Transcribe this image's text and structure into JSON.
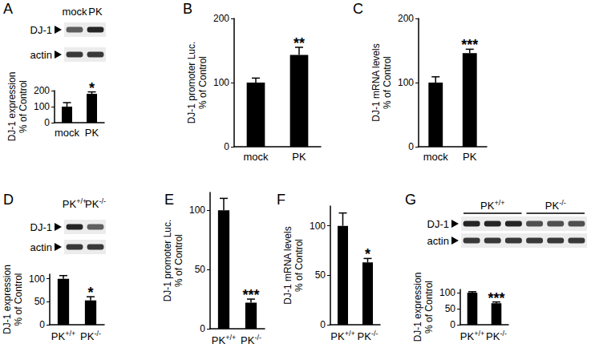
{
  "chart_data": [
    {
      "panel": "A",
      "type": "bar",
      "categories": [
        "mock",
        "PK"
      ],
      "values": [
        100,
        180
      ],
      "errors": [
        25,
        12
      ],
      "ylabel": "DJ-1 expression\n% of Control",
      "ylim": [
        0,
        200
      ],
      "yticks": [
        0,
        100,
        200
      ],
      "annotations": [
        {
          "category": "PK",
          "text": "*"
        }
      ],
      "color": "#000000",
      "grid": false,
      "blot": {
        "rows": [
          "DJ-1",
          "actin"
        ],
        "lane_groups": [
          {
            "label": "mock",
            "lanes": 1
          },
          {
            "label": "PK",
            "lanes": 1
          }
        ]
      }
    },
    {
      "panel": "B",
      "type": "bar",
      "categories": [
        "mock",
        "PK"
      ],
      "values": [
        100,
        143
      ],
      "errors": [
        7,
        12
      ],
      "ylabel": "DJ-1 promoter Luc.\n% of Control",
      "ylim": [
        0,
        200
      ],
      "yticks": [
        0,
        100,
        200
      ],
      "annotations": [
        {
          "category": "PK",
          "text": "**"
        }
      ],
      "color": "#000000",
      "grid": false
    },
    {
      "panel": "C",
      "type": "bar",
      "categories": [
        "mock",
        "PK"
      ],
      "values": [
        100,
        146
      ],
      "errors": [
        9,
        6
      ],
      "ylabel": "DJ-1 mRNA levels\n% of Control",
      "ylim": [
        0,
        200
      ],
      "yticks": [
        0,
        100,
        200
      ],
      "annotations": [
        {
          "category": "PK",
          "text": "***"
        }
      ],
      "color": "#000000",
      "grid": false
    },
    {
      "panel": "D",
      "type": "bar",
      "categories": [
        "PK+/+",
        "PK-/-"
      ],
      "values": [
        100,
        53
      ],
      "errors": [
        7,
        8
      ],
      "ylabel": "DJ-1 expression\n% of Control",
      "ylim": [
        0,
        110
      ],
      "yticks": [
        0,
        50,
        100
      ],
      "annotations": [
        {
          "category": "PK-/-",
          "text": "*"
        }
      ],
      "color": "#000000",
      "grid": false,
      "blot": {
        "rows": [
          "DJ-1",
          "actin"
        ],
        "lane_groups": [
          {
            "label": "PK+/+",
            "lanes": 1
          },
          {
            "label": "PK-/-",
            "lanes": 1
          }
        ]
      }
    },
    {
      "panel": "E",
      "type": "bar",
      "categories": [
        "PK+/+",
        "PK-/-"
      ],
      "values": [
        100,
        22
      ],
      "errors": [
        10,
        3
      ],
      "ylabel": "DJ-1 promoter Luc.\n% of Control",
      "ylim": [
        0,
        115
      ],
      "yticks": [
        0,
        50,
        100
      ],
      "annotations": [
        {
          "category": "PK-/-",
          "text": "***"
        }
      ],
      "color": "#000000",
      "grid": false
    },
    {
      "panel": "F",
      "type": "bar",
      "categories": [
        "PK+/+",
        "PK-/-"
      ],
      "values": [
        100,
        63
      ],
      "errors": [
        13,
        4
      ],
      "ylabel": "DJ-1 mRNA levels\n% of Control",
      "ylim": [
        0,
        120
      ],
      "yticks": [
        0,
        50,
        100
      ],
      "annotations": [
        {
          "category": "PK-/-",
          "text": "*"
        }
      ],
      "color": "#000000",
      "grid": false
    },
    {
      "panel": "G",
      "type": "bar",
      "categories": [
        "PK+/+",
        "PK-/-"
      ],
      "values": [
        100,
        67
      ],
      "errors": [
        3,
        4
      ],
      "ylabel": "DJ-1 expression\n% of Control",
      "ylim": [
        0,
        110
      ],
      "yticks": [
        0,
        50,
        100
      ],
      "annotations": [
        {
          "category": "PK-/-",
          "text": "***"
        }
      ],
      "color": "#000000",
      "grid": false,
      "blot": {
        "rows": [
          "DJ-1",
          "actin"
        ],
        "lane_groups": [
          {
            "label": "PK+/+",
            "lanes": 3
          },
          {
            "label": "PK-/-",
            "lanes": 3
          }
        ]
      }
    }
  ]
}
